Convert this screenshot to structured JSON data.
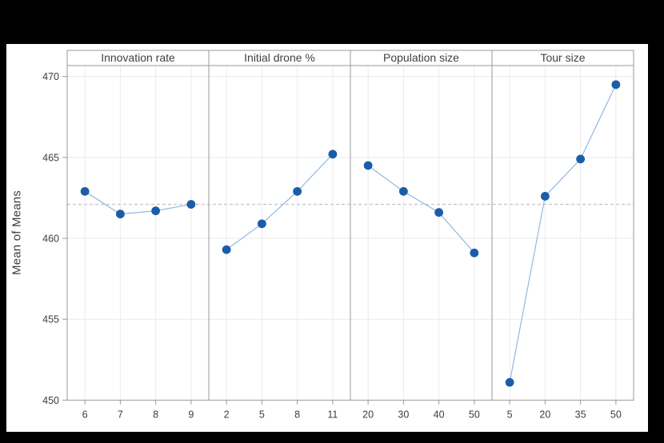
{
  "figure": {
    "background": "#000000",
    "canvas_background": "#ffffff"
  },
  "chart_data": {
    "type": "line",
    "title": "",
    "subtitle": "",
    "ylabel": "Mean of Means",
    "xlabel": "",
    "y_ticks": [
      450,
      455,
      460,
      465,
      470
    ],
    "ylim": [
      450,
      470.7
    ],
    "grid": true,
    "legend": "none",
    "reference_line": 462.1,
    "panels": [
      {
        "label": "Innovation rate",
        "categories": [
          "6",
          "7",
          "8",
          "9"
        ],
        "values": [
          462.9,
          461.5,
          461.7,
          462.1
        ]
      },
      {
        "label": "Initial drone %",
        "categories": [
          "2",
          "5",
          "8",
          "11"
        ],
        "values": [
          459.3,
          460.9,
          462.9,
          465.2
        ]
      },
      {
        "label": "Population size",
        "categories": [
          "20",
          "30",
          "40",
          "50"
        ],
        "values": [
          464.5,
          462.9,
          461.6,
          459.1
        ]
      },
      {
        "label": "Tour size",
        "categories": [
          "5",
          "20",
          "35",
          "50"
        ],
        "values": [
          451.1,
          462.6,
          464.9,
          469.5
        ]
      }
    ],
    "colors": {
      "marker": "#1a5da8",
      "line": "#94b8de",
      "grid": "#ebebeb",
      "border": "#9a9a9a",
      "reference": "#c8c8c8",
      "text": "#3d3d3d"
    }
  }
}
